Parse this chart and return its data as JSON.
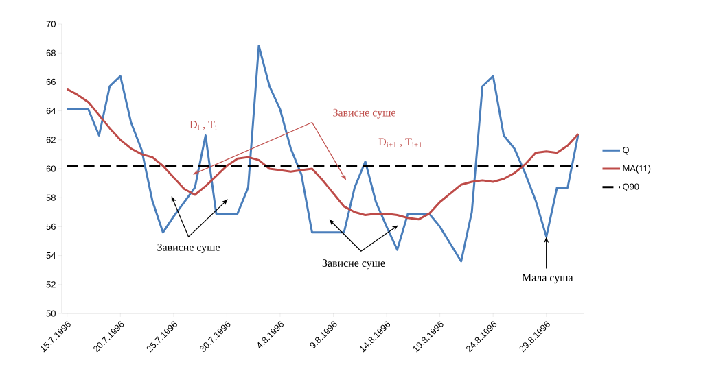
{
  "chart_data": {
    "type": "line",
    "categories": [
      "15.7.1996",
      null,
      null,
      null,
      null,
      "20.7.1996",
      null,
      null,
      null,
      null,
      "25.7.1996",
      null,
      null,
      null,
      null,
      "30.7.1996",
      null,
      null,
      null,
      null,
      "4.8.1996",
      null,
      null,
      null,
      null,
      "9.8.1996",
      null,
      null,
      null,
      null,
      "14.8.1996",
      null,
      null,
      null,
      null,
      "19.8.1996",
      null,
      null,
      null,
      null,
      "24.8.1996",
      null,
      null,
      null,
      null,
      "29.8.1996",
      null,
      null,
      null
    ],
    "series": [
      {
        "name": "Q",
        "color": "#4a7ebb",
        "values": [
          64.1,
          64.1,
          64.1,
          62.3,
          65.7,
          66.4,
          63.2,
          61.3,
          57.8,
          55.6,
          56.7,
          57.7,
          58.7,
          62.3,
          56.9,
          56.9,
          56.9,
          58.7,
          68.5,
          65.7,
          64.1,
          61.4,
          59.6,
          55.6,
          55.6,
          55.6,
          55.6,
          58.7,
          60.5,
          57.7,
          56.0,
          54.4,
          56.9,
          56.9,
          56.9,
          56.0,
          54.8,
          53.6,
          57.0,
          65.7,
          66.4,
          62.3,
          61.4,
          59.7,
          57.8,
          55.3,
          58.7,
          58.7,
          62.4
        ]
      },
      {
        "name": "MA(11)",
        "color": "#be4b48",
        "values": [
          65.5,
          65.1,
          64.6,
          63.7,
          62.8,
          62.0,
          61.4,
          61.0,
          60.8,
          60.2,
          59.4,
          58.6,
          58.2,
          58.8,
          59.5,
          60.2,
          60.7,
          60.8,
          60.6,
          60.0,
          59.9,
          59.8,
          59.9,
          60.0,
          59.2,
          58.3,
          57.4,
          57.0,
          56.8,
          56.9,
          56.9,
          56.8,
          56.6,
          56.5,
          56.9,
          57.7,
          58.3,
          58.9,
          59.1,
          59.2,
          59.1,
          59.3,
          59.7,
          60.3,
          61.1,
          61.2,
          61.1,
          61.6,
          62.4
        ]
      },
      {
        "name": "Q90",
        "color": "#000000",
        "line_style": "dashed",
        "values": [
          60.2,
          60.2,
          60.2,
          60.2,
          60.2,
          60.2,
          60.2,
          60.2,
          60.2,
          60.2,
          60.2,
          60.2,
          60.2,
          60.2,
          60.2,
          60.2,
          60.2,
          60.2,
          60.2,
          60.2,
          60.2,
          60.2,
          60.2,
          60.2,
          60.2,
          60.2,
          60.2,
          60.2,
          60.2,
          60.2,
          60.2,
          60.2,
          60.2,
          60.2,
          60.2,
          60.2,
          60.2,
          60.2,
          60.2,
          60.2,
          60.2,
          60.2,
          60.2,
          60.2,
          60.2,
          60.2,
          60.2,
          60.2,
          60.2
        ]
      }
    ],
    "ylim": [
      50,
      70
    ],
    "yticks": [
      50,
      52,
      54,
      56,
      58,
      60,
      62,
      64,
      66,
      68,
      70
    ],
    "grid": false,
    "legend": "right",
    "marker": "none",
    "annotations": [
      "D$_{i}$ , T$_{i}$",
      "Зависне суше",
      "D$_{i+1}$ , T$_{i+1}$",
      "Зависне суше",
      "Зависне суше",
      {
        "text": "Мала суша",
        "y": 55.3
      }
    ]
  }
}
